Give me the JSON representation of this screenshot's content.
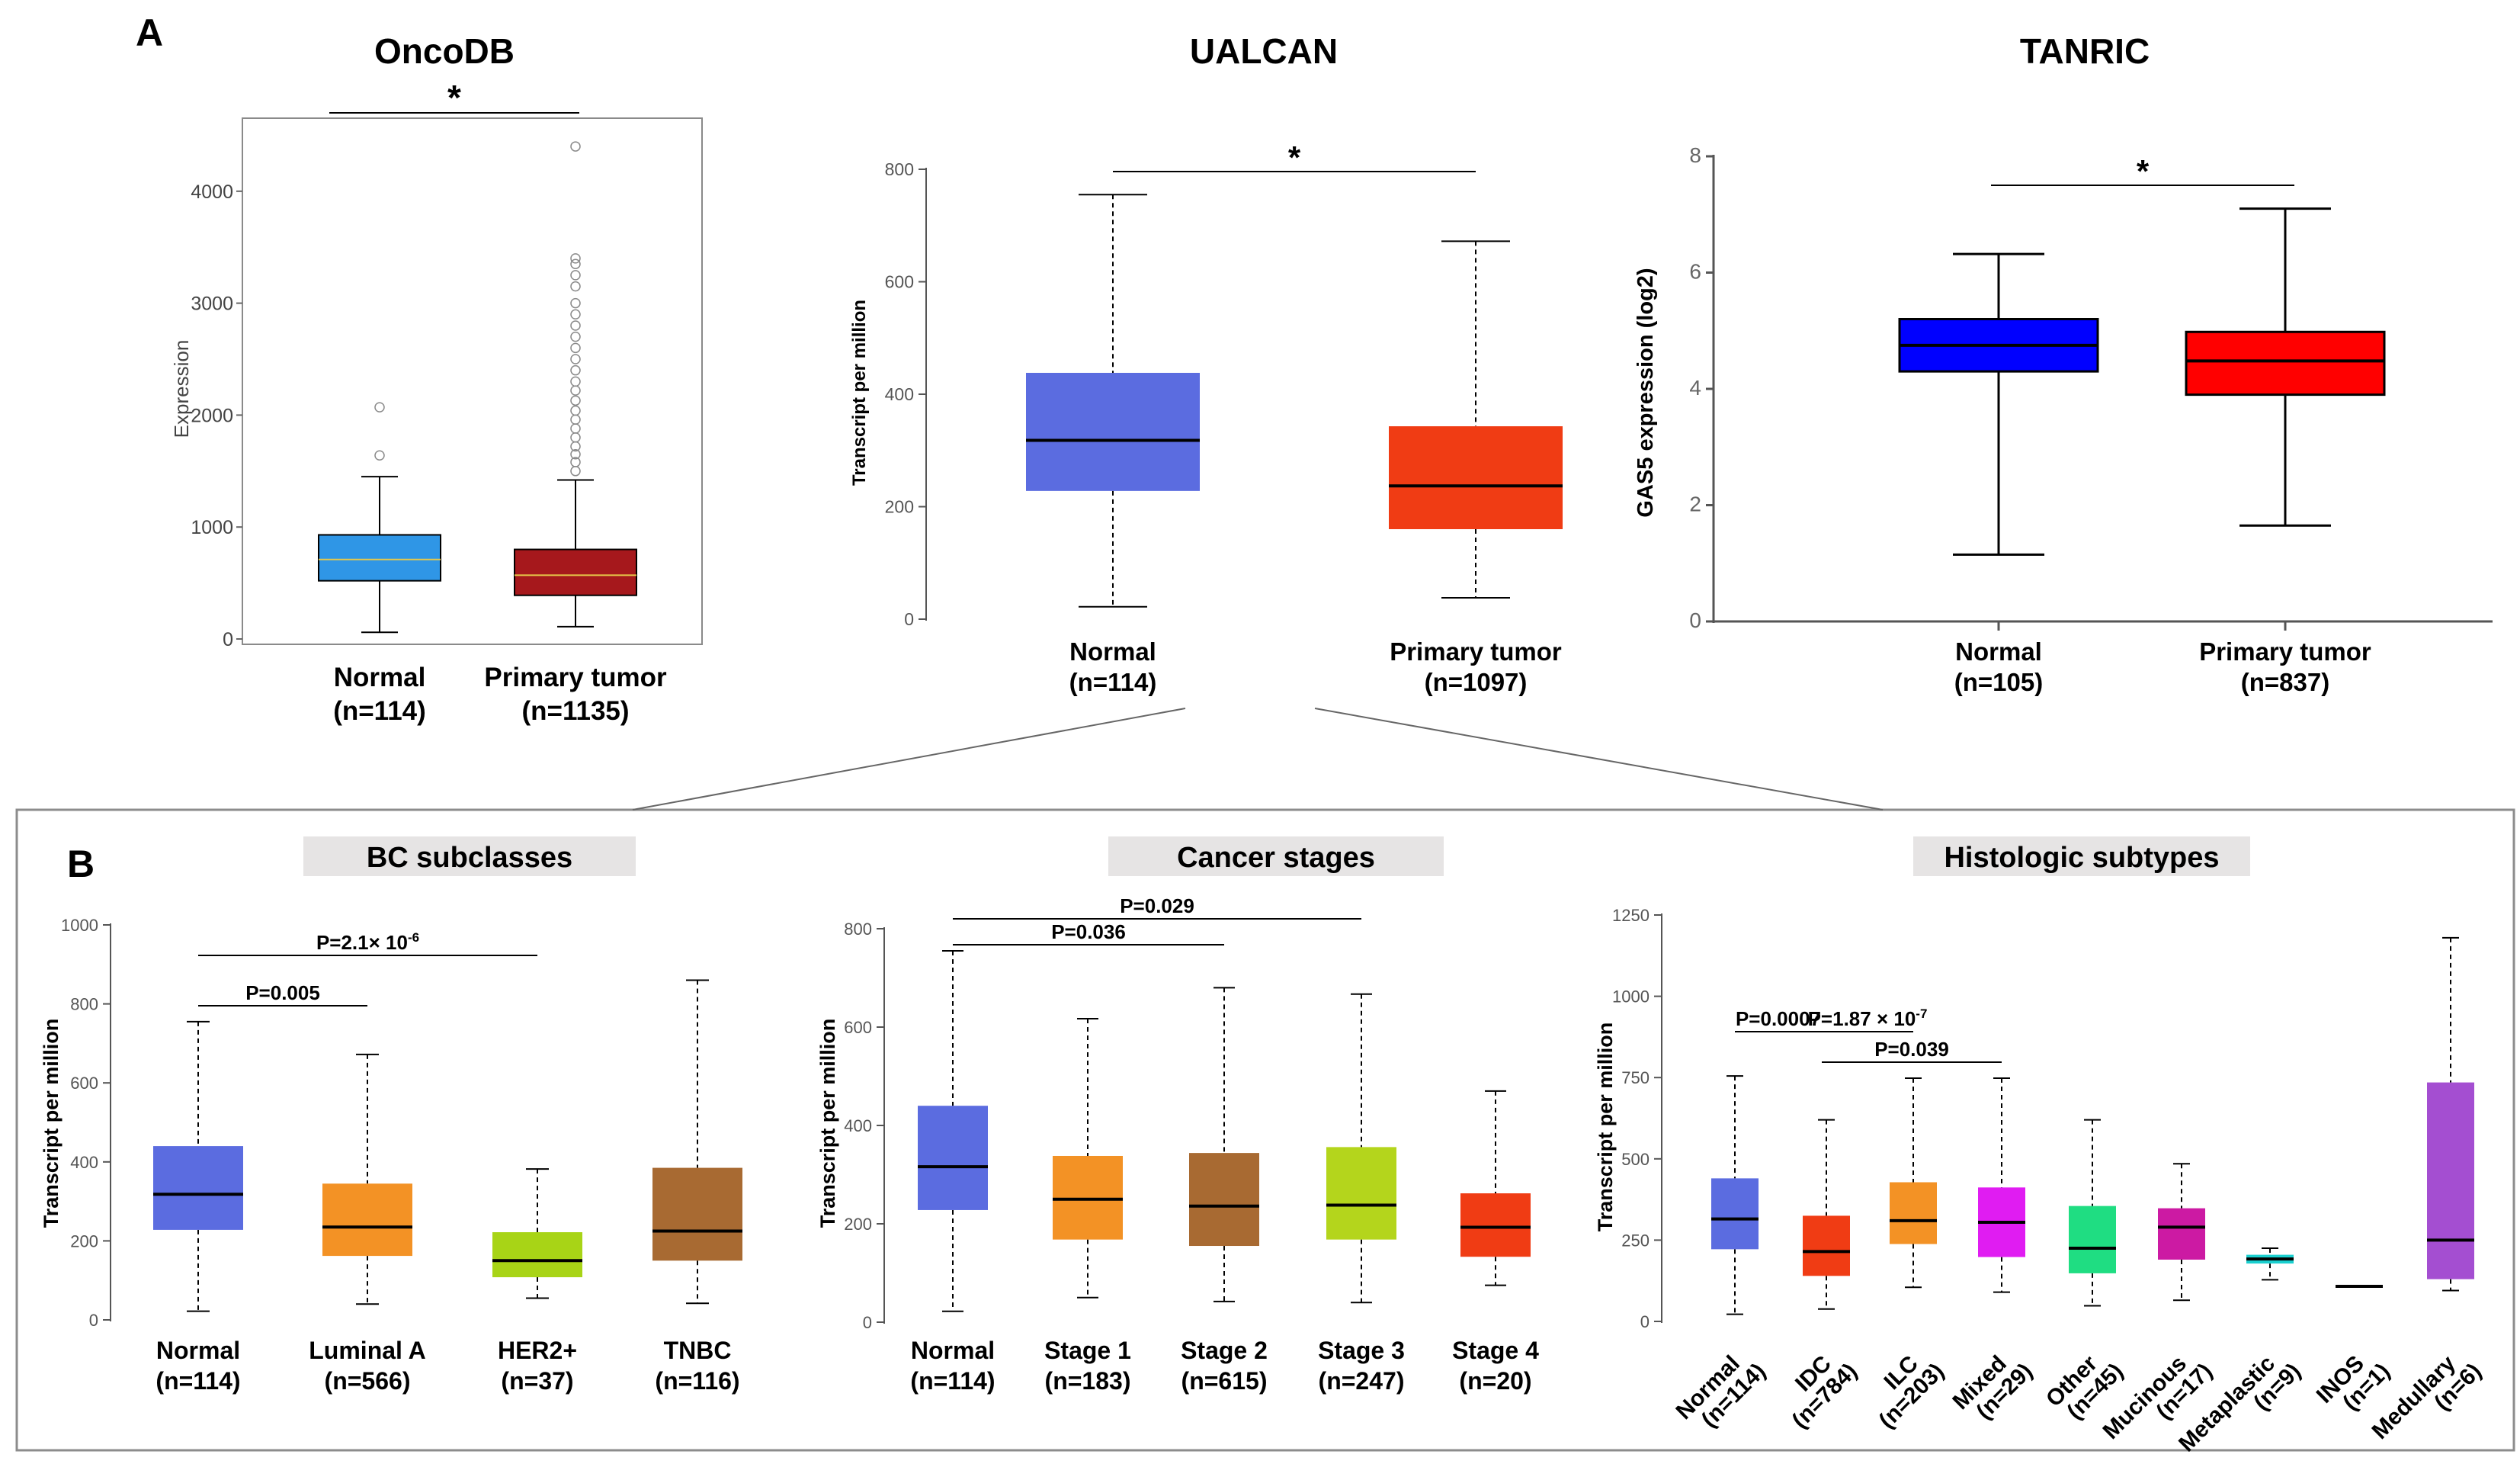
{
  "panel_labels": {
    "a": "A",
    "b": "B"
  },
  "chart_data": [
    {
      "id": "oncodb",
      "type": "box",
      "style": "oncodb",
      "title": "OncoDB",
      "ylabel": "Expression",
      "xlabel": "",
      "ylim": [
        0,
        4500
      ],
      "yticks": [
        0,
        1000,
        2000,
        3000,
        4000
      ],
      "categories": [
        "Normal",
        "Primary tumor"
      ],
      "counts": [
        "(n=114)",
        "(n=1135)"
      ],
      "boxes": [
        {
          "min": 60,
          "q1": 520,
          "median": 710,
          "q3": 930,
          "max": 1450,
          "color": "#2f96e6"
        },
        {
          "min": 110,
          "q1": 390,
          "median": 570,
          "q3": 800,
          "max": 1420,
          "color": "#a6181c"
        }
      ],
      "outliers": [
        [
          1640,
          2070
        ],
        [
          1500,
          1580,
          1650,
          1720,
          1800,
          1880,
          1960,
          2040,
          2130,
          2220,
          2300,
          2400,
          2500,
          2600,
          2700,
          2800,
          2900,
          3000,
          3150,
          3250,
          3350,
          3400,
          4400
        ]
      ],
      "comparisons": [
        {
          "from": 0,
          "to": 1,
          "label": "*"
        }
      ]
    },
    {
      "id": "ualcan",
      "type": "box",
      "style": "ualcan",
      "title": "UALCAN",
      "ylabel": "Transcript per million",
      "xlabel": "",
      "ylim": [
        0,
        800
      ],
      "yticks": [
        0,
        200,
        400,
        600,
        800
      ],
      "categories": [
        "Normal",
        "Primary tumor"
      ],
      "counts": [
        "(n=114)",
        "(n=1097)"
      ],
      "boxes": [
        {
          "min": 22,
          "q1": 228,
          "median": 318,
          "q3": 438,
          "max": 755,
          "color": "#5b6ce0"
        },
        {
          "min": 38,
          "q1": 160,
          "median": 237,
          "q3": 343,
          "max": 672,
          "color": "#f03c14"
        }
      ],
      "comparisons": [
        {
          "from": 0,
          "to": 1,
          "label": "*"
        }
      ]
    },
    {
      "id": "tanric",
      "type": "box",
      "style": "tanric",
      "title": "TANRIC",
      "ylabel": "GAS5 expression (log2)",
      "xlabel": "",
      "ylim": [
        0,
        8
      ],
      "yticks": [
        0,
        2,
        4,
        6,
        8
      ],
      "categories": [
        "Normal",
        "Primary tumor"
      ],
      "counts": [
        "(n=105)",
        "(n=837)"
      ],
      "boxes": [
        {
          "min": 1.15,
          "q1": 4.3,
          "median": 4.75,
          "q3": 5.2,
          "max": 6.32,
          "color": "#0000ff"
        },
        {
          "min": 1.65,
          "q1": 3.9,
          "median": 4.48,
          "q3": 4.98,
          "max": 7.1,
          "color": "#ff0000"
        }
      ],
      "comparisons": [
        {
          "from": 0,
          "to": 1,
          "label": "*"
        }
      ]
    },
    {
      "id": "bc_subclasses",
      "type": "box",
      "style": "ualcan",
      "title": "BC subclasses",
      "ylabel": "Transcript per million",
      "xlabel": "",
      "ylim": [
        0,
        1000
      ],
      "yticks": [
        0,
        200,
        400,
        600,
        800,
        1000
      ],
      "categories": [
        "Normal",
        "Luminal A",
        "HER2+",
        "TNBC"
      ],
      "counts": [
        "(n=114)",
        "(n=566)",
        "(n=37)",
        "(n=116)"
      ],
      "boxes": [
        {
          "min": 22,
          "q1": 228,
          "median": 318,
          "q3": 440,
          "max": 755,
          "color": "#5b6ce0"
        },
        {
          "min": 40,
          "q1": 162,
          "median": 235,
          "q3": 345,
          "max": 672,
          "color": "#f39225"
        },
        {
          "min": 55,
          "q1": 108,
          "median": 150,
          "q3": 222,
          "max": 382,
          "color": "#a8d416"
        },
        {
          "min": 42,
          "q1": 150,
          "median": 225,
          "q3": 385,
          "max": 860,
          "color": "#a86a32"
        }
      ],
      "comparisons": [
        {
          "from": 0,
          "to": 1,
          "label": "P=0.005"
        },
        {
          "from": 0,
          "to": 2,
          "label": "P=2.1× 10",
          "sup": "-6"
        }
      ]
    },
    {
      "id": "cancer_stages",
      "type": "box",
      "style": "ualcan",
      "title": "Cancer stages",
      "ylabel": "Transcript per million",
      "xlabel": "",
      "ylim": [
        0,
        800
      ],
      "yticks": [
        0,
        200,
        400,
        600,
        800
      ],
      "categories": [
        "Normal",
        "Stage 1",
        "Stage 2",
        "Stage 3",
        "Stage 4"
      ],
      "counts": [
        "(n=114)",
        "(n=183)",
        "(n=615)",
        "(n=247)",
        "(n=20)"
      ],
      "boxes": [
        {
          "min": 22,
          "q1": 228,
          "median": 316,
          "q3": 440,
          "max": 755,
          "color": "#5b6ce0"
        },
        {
          "min": 50,
          "q1": 168,
          "median": 250,
          "q3": 338,
          "max": 617,
          "color": "#f39225"
        },
        {
          "min": 42,
          "q1": 155,
          "median": 236,
          "q3": 344,
          "max": 680,
          "color": "#a86a32"
        },
        {
          "min": 40,
          "q1": 168,
          "median": 238,
          "q3": 356,
          "max": 667,
          "color": "#b4d51c"
        },
        {
          "min": 75,
          "q1": 133,
          "median": 193,
          "q3": 262,
          "max": 470,
          "color": "#f03c14"
        }
      ],
      "comparisons": [
        {
          "from": 0,
          "to": 2,
          "label": "P=0.036"
        },
        {
          "from": 0,
          "to": 3,
          "label": "P=0.029"
        }
      ]
    },
    {
      "id": "histologic_subtypes",
      "type": "box",
      "style": "ualcan",
      "title": "Histologic subtypes",
      "ylabel": "Transcript per million",
      "xlabel": "",
      "ylim": [
        0,
        1250
      ],
      "yticks": [
        0,
        250,
        500,
        750,
        1000,
        1250
      ],
      "categories": [
        "Normal",
        "IDC",
        "ILC",
        "Mixed",
        "Other",
        "Mucinous",
        "Metaplastic",
        "INOS",
        "Medullary"
      ],
      "counts": [
        "(n=114)",
        "(n=784)",
        "(n=203)",
        "(n=29)",
        "(n=45)",
        "(n=17)",
        "(n=9)",
        "(n=1)",
        "(n=6)"
      ],
      "boxes": [
        {
          "min": 22,
          "q1": 222,
          "median": 315,
          "q3": 440,
          "max": 755,
          "color": "#5b6ce0"
        },
        {
          "min": 38,
          "q1": 140,
          "median": 215,
          "q3": 325,
          "max": 620,
          "color": "#f03c14"
        },
        {
          "min": 105,
          "q1": 238,
          "median": 310,
          "q3": 428,
          "max": 748,
          "color": "#f39225"
        },
        {
          "min": 90,
          "q1": 198,
          "median": 305,
          "q3": 412,
          "max": 748,
          "color": "#e01cf2"
        },
        {
          "min": 48,
          "q1": 148,
          "median": 225,
          "q3": 355,
          "max": 620,
          "color": "#1fdd82"
        },
        {
          "min": 65,
          "q1": 190,
          "median": 290,
          "q3": 348,
          "max": 485,
          "color": "#cc1aa3"
        },
        {
          "min": 128,
          "q1": 178,
          "median": 192,
          "q3": 205,
          "max": 225,
          "color": "#1acfcf"
        },
        {
          "min": 108,
          "q1": 108,
          "median": 108,
          "q3": 108,
          "max": 108,
          "color": "#333333"
        },
        {
          "min": 95,
          "q1": 130,
          "median": 250,
          "q3": 735,
          "max": 1180,
          "color": "#a44ed1"
        }
      ],
      "comparisons": [
        {
          "from": 0,
          "to": 1,
          "label": "P=0.0007"
        },
        {
          "from": 1,
          "to": 2,
          "label": "P=1.87 × 10",
          "sup": "-7"
        },
        {
          "from": 1,
          "to": 3,
          "label": "P=0.039"
        }
      ]
    }
  ]
}
